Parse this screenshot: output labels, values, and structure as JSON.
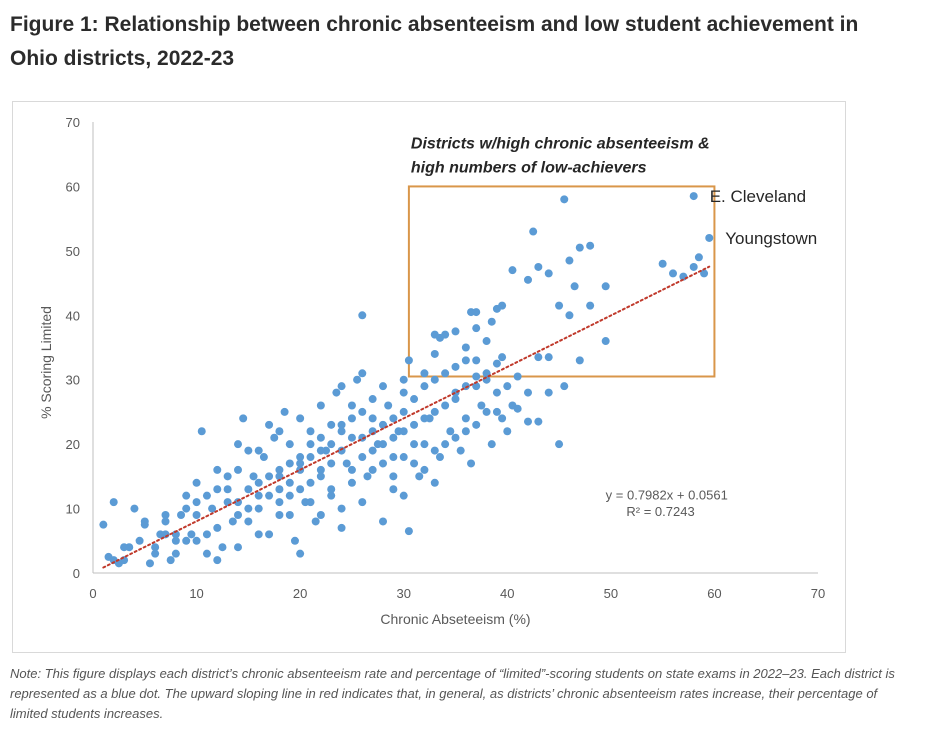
{
  "figure": {
    "title": "Figure 1: Relationship between chronic absenteeism and low student achievement in Ohio districts, 2022-23",
    "note": "Note: This figure displays each district’s chronic absenteeism rate and percentage of “limited”-scoring students on state exams in 2022–23. Each district is represented as a blue dot. The upward sloping line in red indicates that, in general, as districts’ chronic absenteeism rates increase, their percentage of limited students increases."
  },
  "colors": {
    "points": "#5b9bd5",
    "trendline": "#c0392b",
    "highlight_box": "#d9964a",
    "axis": "#bfbfbf"
  },
  "chart_data": {
    "type": "scatter",
    "title": "",
    "xlabel": "Chronic Abseteeism (%)",
    "ylabel": "% Scoring Limited",
    "xlim": [
      0,
      70
    ],
    "ylim": [
      0,
      70
    ],
    "x_ticks": [
      "0",
      "10",
      "20",
      "30",
      "40",
      "50",
      "60",
      "70"
    ],
    "y_ticks": [
      "0",
      "10",
      "20",
      "30",
      "40",
      "50",
      "60",
      "70"
    ],
    "grid": false,
    "trendline": {
      "style": "dotted",
      "slope": 0.7982,
      "intercept": 0.0561,
      "x_range": [
        1,
        59.5
      ],
      "equation": "y = 0.7982x + 0.0561",
      "r_squared": "R² = 0.7243"
    },
    "highlight_region": {
      "x": [
        30.5,
        60
      ],
      "y": [
        30.5,
        60
      ],
      "label_line1": "Districts w/high chronic absenteeism &",
      "label_line2": "high numbers of low-achievers"
    },
    "labeled_points": [
      {
        "label": "E. Cleveland",
        "x": 58,
        "y": 58.5
      },
      {
        "label": "Youngstown",
        "x": 59.5,
        "y": 52
      }
    ],
    "highlighted_points": [
      [
        45.5,
        58
      ],
      [
        42.5,
        53
      ],
      [
        43,
        47.5
      ],
      [
        44,
        46.5
      ],
      [
        42,
        45.5
      ],
      [
        46,
        48.5
      ],
      [
        47,
        50.5
      ],
      [
        48,
        50.8
      ],
      [
        40.5,
        47
      ],
      [
        46.5,
        44.5
      ],
      [
        49.5,
        44.5
      ],
      [
        45,
        41.5
      ],
      [
        46,
        40
      ],
      [
        48,
        41.5
      ],
      [
        44,
        33.5
      ],
      [
        47,
        33
      ],
      [
        49.5,
        36
      ],
      [
        36.5,
        40.5
      ],
      [
        37,
        40.5
      ],
      [
        39,
        41
      ],
      [
        39.5,
        41.5
      ],
      [
        38.5,
        39
      ],
      [
        38,
        36
      ],
      [
        36,
        35
      ],
      [
        34,
        37
      ],
      [
        35,
        37.5
      ],
      [
        37,
        38
      ],
      [
        36,
        33
      ],
      [
        33,
        37
      ],
      [
        33.5,
        36.5
      ],
      [
        39,
        32.5
      ],
      [
        39.5,
        33.5
      ],
      [
        41,
        30.5
      ],
      [
        38,
        31
      ],
      [
        37,
        30.5
      ],
      [
        30.5,
        33
      ],
      [
        32,
        31
      ],
      [
        55,
        48
      ],
      [
        56,
        46.5
      ],
      [
        57,
        46
      ],
      [
        58,
        47.5
      ],
      [
        59,
        46.5
      ],
      [
        58.5,
        49
      ],
      [
        45.5,
        29
      ],
      [
        43,
        33.5
      ]
    ],
    "other_points": [
      [
        1,
        7.5
      ],
      [
        1.5,
        2.5
      ],
      [
        2,
        11
      ],
      [
        2.5,
        1.5
      ],
      [
        3,
        2
      ],
      [
        3.5,
        4
      ],
      [
        4,
        10
      ],
      [
        4.5,
        5
      ],
      [
        5,
        7.5
      ],
      [
        5.5,
        1.5
      ],
      [
        6,
        3
      ],
      [
        6.5,
        6
      ],
      [
        7,
        8
      ],
      [
        7.5,
        2
      ],
      [
        8,
        5
      ],
      [
        8.5,
        9
      ],
      [
        9,
        12
      ],
      [
        9.5,
        6
      ],
      [
        10,
        14
      ],
      [
        10.5,
        22
      ],
      [
        11,
        3
      ],
      [
        11.5,
        10
      ],
      [
        12,
        16
      ],
      [
        12.5,
        4
      ],
      [
        13,
        13
      ],
      [
        13.5,
        8
      ],
      [
        14,
        20
      ],
      [
        14.5,
        24
      ],
      [
        15,
        10
      ],
      [
        15.5,
        15
      ],
      [
        16,
        6
      ],
      [
        16.5,
        18
      ],
      [
        17,
        12
      ],
      [
        17.5,
        21
      ],
      [
        18,
        9
      ],
      [
        18.5,
        25
      ],
      [
        19,
        14
      ],
      [
        19.5,
        5
      ],
      [
        20,
        17
      ],
      [
        20.5,
        11
      ],
      [
        21,
        22
      ],
      [
        21.5,
        8
      ],
      [
        22,
        16
      ],
      [
        22.5,
        19
      ],
      [
        23,
        13
      ],
      [
        23.5,
        28
      ],
      [
        24,
        10
      ],
      [
        24.5,
        17
      ],
      [
        25,
        21
      ],
      [
        25.5,
        30
      ],
      [
        26,
        40
      ],
      [
        26.5,
        15
      ],
      [
        27,
        24
      ],
      [
        27.5,
        20
      ],
      [
        28,
        17
      ],
      [
        28.5,
        26
      ],
      [
        29,
        13
      ],
      [
        29.5,
        22
      ],
      [
        30,
        18
      ],
      [
        30.5,
        6.5
      ],
      [
        31,
        27
      ],
      [
        31.5,
        15
      ],
      [
        32,
        20
      ],
      [
        32.5,
        24
      ],
      [
        33,
        14
      ],
      [
        33.5,
        18
      ],
      [
        34,
        26
      ],
      [
        34.5,
        22
      ],
      [
        35,
        28
      ],
      [
        35.5,
        19
      ],
      [
        36,
        24
      ],
      [
        36.5,
        17
      ],
      [
        37,
        29
      ],
      [
        37.5,
        26
      ],
      [
        38,
        25
      ],
      [
        38.5,
        20
      ],
      [
        39,
        28
      ],
      [
        39.5,
        24
      ],
      [
        40,
        22
      ],
      [
        40.5,
        26
      ],
      [
        42,
        23.5
      ],
      [
        43,
        23.5
      ],
      [
        44,
        28
      ],
      [
        45,
        20
      ],
      [
        30,
        12
      ],
      [
        28,
        8
      ],
      [
        26,
        11
      ],
      [
        24,
        7
      ],
      [
        22,
        9
      ],
      [
        20,
        3
      ],
      [
        19,
        12
      ],
      [
        17,
        6
      ],
      [
        15,
        8
      ],
      [
        14,
        4
      ],
      [
        12,
        2
      ],
      [
        11,
        6
      ],
      [
        10,
        9
      ],
      [
        9,
        5
      ],
      [
        8,
        3
      ],
      [
        7,
        6
      ],
      [
        6,
        4
      ],
      [
        5,
        8
      ],
      [
        3,
        4
      ],
      [
        2,
        2
      ],
      [
        13,
        11
      ],
      [
        16,
        14
      ],
      [
        18,
        16
      ],
      [
        21,
        18
      ],
      [
        23,
        20
      ],
      [
        25,
        16
      ],
      [
        27,
        19
      ],
      [
        29,
        21
      ],
      [
        31,
        23
      ],
      [
        33,
        25
      ],
      [
        35,
        27
      ],
      [
        32,
        16
      ],
      [
        34,
        20
      ],
      [
        36,
        22
      ],
      [
        30,
        25
      ],
      [
        28,
        23
      ],
      [
        26,
        21
      ],
      [
        24,
        19
      ],
      [
        22,
        15
      ],
      [
        20,
        13
      ],
      [
        18,
        11
      ],
      [
        16,
        10
      ],
      [
        14,
        9
      ],
      [
        12,
        7
      ],
      [
        10,
        5
      ],
      [
        8,
        6
      ],
      [
        19,
        20
      ],
      [
        21,
        14
      ],
      [
        23,
        17
      ],
      [
        25,
        24
      ],
      [
        27,
        27
      ],
      [
        29,
        18
      ],
      [
        31,
        20
      ],
      [
        33,
        30
      ],
      [
        35,
        32
      ],
      [
        37,
        33
      ],
      [
        15,
        13
      ],
      [
        17,
        15
      ],
      [
        13,
        15
      ],
      [
        11,
        12
      ],
      [
        9,
        10
      ],
      [
        7,
        9
      ],
      [
        16,
        19
      ],
      [
        18,
        22
      ],
      [
        20,
        24
      ],
      [
        22,
        26
      ],
      [
        24,
        29
      ],
      [
        26,
        31
      ],
      [
        28,
        29
      ],
      [
        30,
        28
      ],
      [
        32,
        29
      ],
      [
        34,
        31
      ],
      [
        19,
        9
      ],
      [
        21,
        11
      ],
      [
        23,
        12
      ],
      [
        25,
        14
      ],
      [
        27,
        16
      ],
      [
        29,
        15
      ],
      [
        31,
        17
      ],
      [
        33,
        19
      ],
      [
        35,
        21
      ],
      [
        37,
        23
      ],
      [
        39,
        25
      ],
      [
        41,
        25.5
      ],
      [
        14,
        16
      ],
      [
        12,
        13
      ],
      [
        10,
        11
      ],
      [
        18,
        13
      ],
      [
        20,
        16
      ],
      [
        22,
        19
      ],
      [
        24,
        22
      ],
      [
        26,
        25
      ],
      [
        15,
        19
      ],
      [
        17,
        23
      ],
      [
        19,
        17
      ],
      [
        21,
        20
      ],
      [
        23,
        23
      ],
      [
        25,
        26
      ],
      [
        27,
        22
      ],
      [
        29,
        24
      ],
      [
        30,
        30
      ],
      [
        33,
        34
      ],
      [
        36,
        29
      ],
      [
        38,
        30
      ],
      [
        40,
        29
      ],
      [
        42,
        28
      ],
      [
        16,
        12
      ],
      [
        14,
        11
      ],
      [
        18,
        15
      ],
      [
        20,
        18
      ],
      [
        22,
        21
      ],
      [
        24,
        23
      ],
      [
        26,
        18
      ],
      [
        28,
        20
      ],
      [
        30,
        22
      ],
      [
        32,
        24
      ]
    ]
  }
}
